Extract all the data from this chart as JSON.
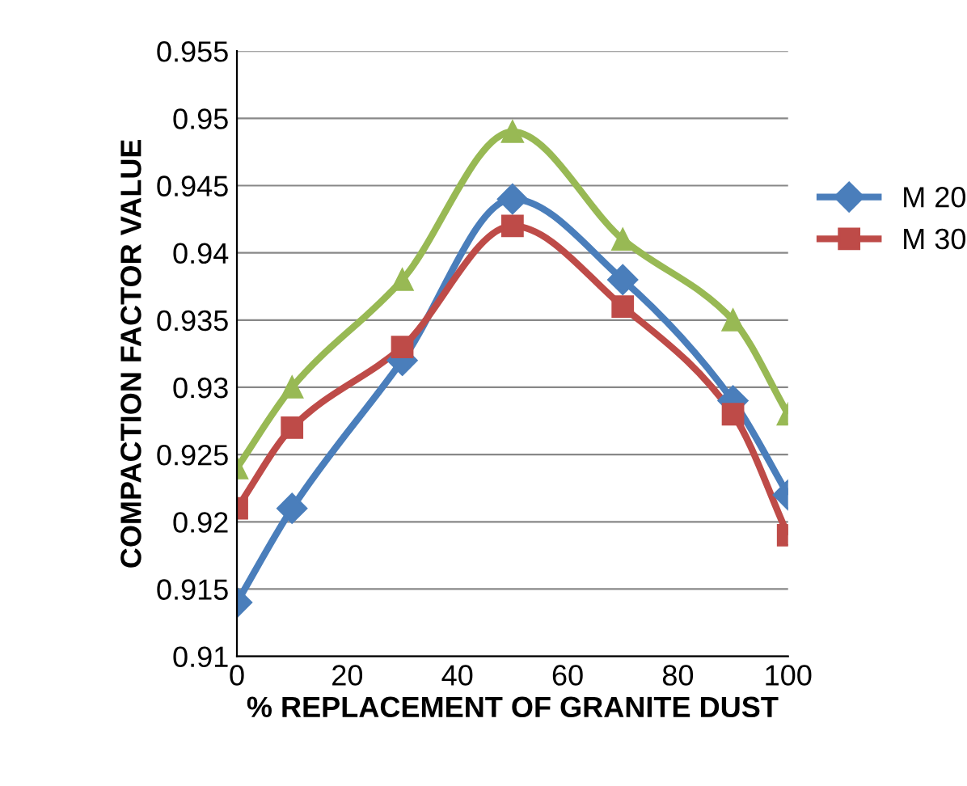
{
  "chart_data": {
    "type": "line",
    "xlabel": "% REPLACEMENT OF GRANITE DUST",
    "ylabel": "COMPACTION FACTOR VALUE",
    "x": [
      0,
      10,
      30,
      50,
      70,
      90,
      100
    ],
    "series": [
      {
        "name": "M 20",
        "color": "#4a7ebb",
        "marker": "diamond",
        "values": [
          0.914,
          0.921,
          0.932,
          0.944,
          0.938,
          0.929,
          0.922
        ]
      },
      {
        "name": "M 30",
        "color": "#be4b48",
        "marker": "square",
        "values": [
          0.921,
          0.927,
          0.933,
          0.942,
          0.936,
          0.928,
          0.919
        ]
      },
      {
        "color": "#98b954",
        "marker": "triangle",
        "values": [
          0.924,
          0.93,
          0.938,
          0.949,
          0.941,
          0.935,
          0.928
        ]
      }
    ],
    "xlim": [
      0,
      100
    ],
    "xticks": [
      0,
      20,
      40,
      60,
      80,
      100
    ],
    "ylim": [
      0.91,
      0.955
    ],
    "yticks": [
      0.91,
      0.915,
      0.92,
      0.925,
      0.93,
      0.935,
      0.94,
      0.945,
      0.95,
      0.955
    ],
    "grid": "y",
    "legend": "right"
  }
}
